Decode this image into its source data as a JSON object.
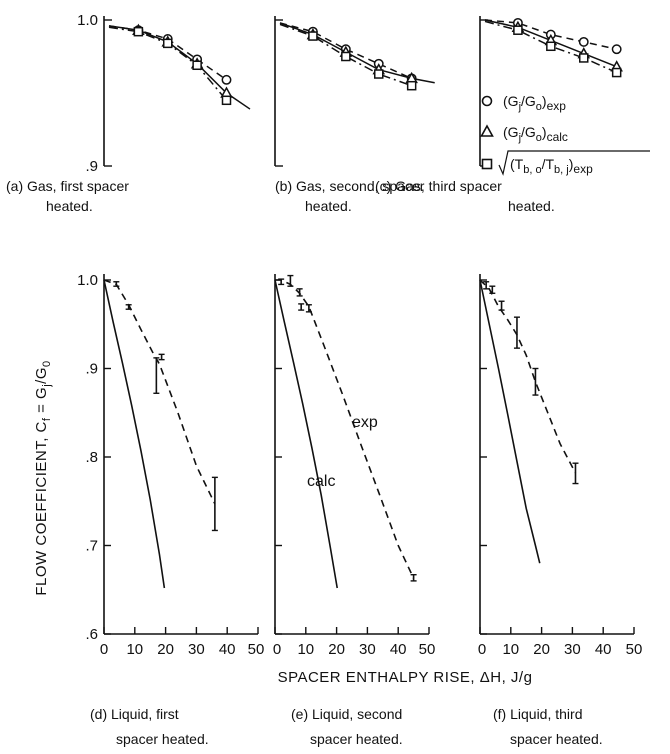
{
  "figure": {
    "y_label": "FLOW COEFFICIENT, C_f = G_j/G_0",
    "y_label_parts": {
      "main": "FLOW COEFFICIENT, C",
      "f_sub": "f",
      "eq": " = G",
      "j_sub": "j",
      "slash": "/G",
      "o_sub": "0"
    },
    "x_label": "SPACER ENTHALPY RISE, ΔH,  J/g"
  },
  "legend": {
    "entries": [
      {
        "marker": "circle",
        "text": "(G_j/G_o)_exp",
        "parts": [
          "(G",
          "j",
          "/G",
          "o",
          ")",
          "exp"
        ]
      },
      {
        "marker": "triangle",
        "text": "(G_j/G_o)_calc",
        "parts": [
          "(G",
          "j",
          "/G",
          "o",
          ")",
          "calc"
        ]
      },
      {
        "marker": "square",
        "text": "√((T_b,o/T_b,j)_exp)",
        "parts": [
          "(T",
          "b, o",
          "/T",
          "b, j",
          ")",
          "exp"
        ]
      }
    ]
  },
  "chart_data": [
    {
      "panel": "a",
      "type": "line",
      "caption_line1": "(a) Gas,  first spacer",
      "caption_line2": "heated.",
      "ylim": [
        0.9,
        1.0
      ],
      "yticks": [
        "1.0",
        ".9"
      ],
      "series": [
        {
          "name": "(G_j/G_o)_exp",
          "style": "dashed",
          "marker": "circle",
          "x": [
            0,
            1,
            2,
            3,
            4
          ],
          "y": [
            0.996,
            0.993,
            0.987,
            0.973,
            0.959
          ]
        },
        {
          "name": "(G_j/G_o)_calc",
          "style": "solid",
          "marker": "triangle",
          "x": [
            0,
            1,
            2,
            3,
            4,
            4.8
          ],
          "y": [
            0.996,
            0.993,
            0.985,
            0.97,
            0.95,
            0.939
          ]
        },
        {
          "name": "√((T_b,o/T_b,j)_exp)",
          "style": "dashdot",
          "marker": "square",
          "x": [
            0,
            1,
            2,
            3,
            4
          ],
          "y": [
            0.995,
            0.992,
            0.984,
            0.969,
            0.945
          ]
        }
      ]
    },
    {
      "panel": "b",
      "type": "line",
      "caption_line1": "(b) Gas,  second,  spacer",
      "caption_line2": "heated.",
      "ylim": [
        0.9,
        1.0
      ],
      "series": [
        {
          "name": "(G_j/G_o)_exp",
          "style": "dashed",
          "marker": "circle",
          "x": [
            0,
            1,
            2,
            3,
            4
          ],
          "y": [
            0.998,
            0.992,
            0.98,
            0.97,
            0.96
          ]
        },
        {
          "name": "(G_j/G_o)_calc",
          "style": "solid",
          "marker": "triangle",
          "x": [
            0,
            1,
            2,
            3,
            4,
            4.7
          ],
          "y": [
            0.998,
            0.99,
            0.978,
            0.966,
            0.96,
            0.957
          ]
        },
        {
          "name": "√((T_b,o/T_b,j)_exp)",
          "style": "dashdot",
          "marker": "square",
          "x": [
            0,
            1,
            2,
            3,
            4
          ],
          "y": [
            0.997,
            0.989,
            0.975,
            0.963,
            0.955
          ]
        }
      ]
    },
    {
      "panel": "c",
      "type": "line",
      "caption_line1": "(c) Gas,  third spacer",
      "caption_line2": "heated.",
      "ylim": [
        0.9,
        1.0
      ],
      "series": [
        {
          "name": "(G_j/G_o)_exp",
          "style": "dashed",
          "marker": "circle",
          "x": [
            0,
            1,
            2,
            3,
            4
          ],
          "y": [
            1.0,
            0.998,
            0.99,
            0.985,
            0.98
          ]
        },
        {
          "name": "(G_j/G_o)_calc",
          "style": "solid",
          "marker": "triangle",
          "x": [
            0,
            1,
            2,
            3,
            4
          ],
          "y": [
            1.0,
            0.995,
            0.986,
            0.977,
            0.968
          ]
        },
        {
          "name": "√((T_b,o/T_b,j)_exp)",
          "style": "dashdot",
          "marker": "square",
          "x": [
            0,
            1,
            2,
            3,
            4
          ],
          "y": [
            0.999,
            0.993,
            0.982,
            0.974,
            0.964
          ]
        }
      ]
    },
    {
      "panel": "d",
      "type": "line",
      "caption_line1": "(d) Liquid, first",
      "caption_line2": "spacer heated.",
      "xlim": [
        0,
        50
      ],
      "ylim": [
        0.6,
        1.0
      ],
      "xticks": [
        0,
        10,
        20,
        30,
        40,
        50
      ],
      "yticks": [
        "1.0",
        ".9",
        ".8",
        ".7",
        ".6"
      ],
      "series": [
        {
          "name": "calc",
          "style": "solid",
          "x": [
            0,
            3,
            6,
            9,
            12,
            15,
            18,
            19.6
          ],
          "y": [
            1.0,
            0.952,
            0.906,
            0.858,
            0.807,
            0.752,
            0.69,
            0.652
          ]
        },
        {
          "name": "exp",
          "style": "dashed",
          "x": [
            0,
            4,
            8,
            12,
            16,
            18,
            24,
            30,
            36
          ],
          "y": [
            1.0,
            0.995,
            0.972,
            0.944,
            0.917,
            0.905,
            0.85,
            0.79,
            0.747
          ]
        }
      ],
      "error_bars": [
        {
          "x": 4,
          "low": 0.993,
          "high": 0.998
        },
        {
          "x": 8,
          "low": 0.967,
          "high": 0.972
        },
        {
          "x": 17,
          "low": 0.872,
          "high": 0.912
        },
        {
          "x": 18.7,
          "low": 0.91,
          "high": 0.916
        },
        {
          "x": 36,
          "low": 0.717,
          "high": 0.777
        }
      ]
    },
    {
      "panel": "e",
      "type": "line",
      "caption_line1": "(e) Liquid, second",
      "caption_line2": "spacer heated.",
      "xlim": [
        0,
        50
      ],
      "ylim": [
        0.6,
        1.0
      ],
      "xticks": [
        0,
        10,
        20,
        30,
        40,
        50
      ],
      "annotations": [
        {
          "text": "exp"
        },
        {
          "text": "calc"
        }
      ],
      "series": [
        {
          "name": "calc",
          "style": "solid",
          "x": [
            0,
            3,
            6,
            9,
            12,
            15,
            18,
            20.2
          ],
          "y": [
            1.0,
            0.953,
            0.907,
            0.86,
            0.81,
            0.757,
            0.697,
            0.652
          ]
        },
        {
          "name": "exp",
          "style": "dashed",
          "x": [
            0,
            2,
            5,
            8,
            11,
            16,
            22,
            28,
            34,
            40,
            45
          ],
          "y": [
            1.0,
            1.0,
            0.995,
            0.985,
            0.97,
            0.925,
            0.87,
            0.813,
            0.757,
            0.7,
            0.663
          ]
        }
      ],
      "error_bars": [
        {
          "x": 2,
          "low": 0.995,
          "high": 1.001
        },
        {
          "x": 5,
          "low": 0.993,
          "high": 1.005
        },
        {
          "x": 8,
          "low": 0.982,
          "high": 0.99
        },
        {
          "x": 8.5,
          "low": 0.966,
          "high": 0.973
        },
        {
          "x": 11,
          "low": 0.964,
          "high": 0.972
        },
        {
          "x": 45,
          "low": 0.66,
          "high": 0.667
        }
      ]
    },
    {
      "panel": "f",
      "type": "line",
      "caption_line1": "(f) Liquid,  third",
      "caption_line2": "spacer heated.",
      "xlim": [
        0,
        50
      ],
      "ylim": [
        0.6,
        1.0
      ],
      "xticks": [
        0,
        10,
        20,
        30,
        40,
        50
      ],
      "series": [
        {
          "name": "calc",
          "style": "solid",
          "x": [
            0,
            3,
            6,
            9,
            12,
            15,
            18,
            19.4
          ],
          "y": [
            1.0,
            0.95,
            0.9,
            0.848,
            0.795,
            0.742,
            0.7,
            0.68
          ]
        },
        {
          "name": "exp",
          "style": "dashed",
          "x": [
            0,
            3,
            6,
            9,
            12,
            15,
            18,
            22,
            26,
            31
          ],
          "y": [
            1.0,
            0.99,
            0.97,
            0.955,
            0.938,
            0.915,
            0.885,
            0.85,
            0.815,
            0.782
          ]
        }
      ],
      "error_bars": [
        {
          "x": 2,
          "low": 0.99,
          "high": 0.998
        },
        {
          "x": 4,
          "low": 0.985,
          "high": 0.993
        },
        {
          "x": 7,
          "low": 0.966,
          "high": 0.976
        },
        {
          "x": 12,
          "low": 0.923,
          "high": 0.958
        },
        {
          "x": 18,
          "low": 0.87,
          "high": 0.9
        },
        {
          "x": 31,
          "low": 0.77,
          "high": 0.793
        }
      ]
    }
  ]
}
